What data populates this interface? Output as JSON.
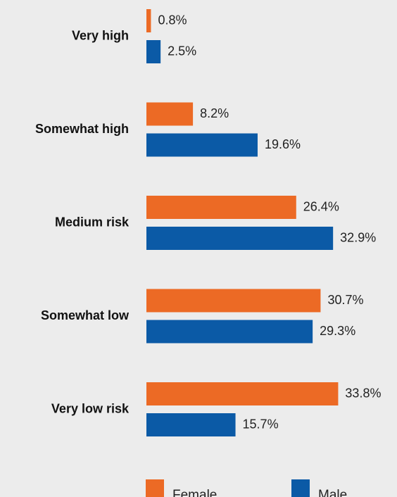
{
  "colors": {
    "background": "#ececec",
    "Female": "#ec6a25",
    "Male": "#0b5aa6"
  },
  "chart_data": {
    "type": "bar",
    "orientation": "horizontal",
    "categories": [
      "Very high",
      "Somewhat high",
      "Medium risk",
      "Somewhat low",
      "Very low risk"
    ],
    "series": [
      {
        "name": "Female",
        "values": [
          0.8,
          8.2,
          26.4,
          30.7,
          33.8
        ],
        "labels": [
          "0.8%",
          "8.2%",
          "26.4%",
          "30.7%",
          "33.8%"
        ]
      },
      {
        "name": "Male",
        "values": [
          2.5,
          19.6,
          32.9,
          29.3,
          15.7
        ],
        "labels": [
          "2.5%",
          "19.6%",
          "32.9%",
          "29.3%",
          "15.7%"
        ]
      }
    ],
    "unit": "%",
    "xlim": [
      0,
      40
    ],
    "grid": false,
    "legend": "bottom"
  }
}
